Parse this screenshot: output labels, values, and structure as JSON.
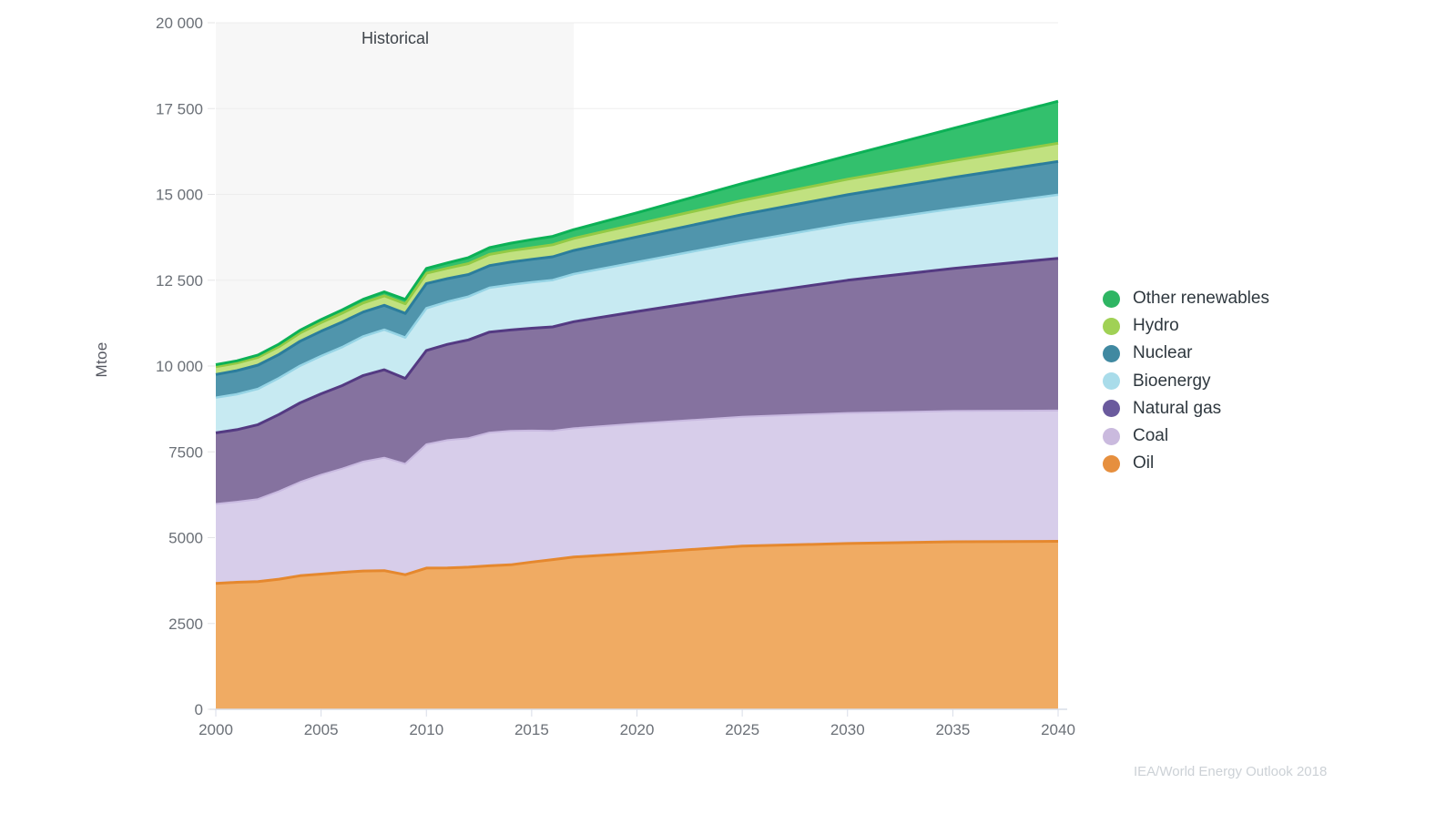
{
  "page": {
    "source_credit": "IEA/World Energy Outlook 2018"
  },
  "chart_data": {
    "type": "area",
    "stacked": true,
    "title": "",
    "ylabel": "Mtoe",
    "unit": "Mtoe",
    "ylim": [
      0,
      20000
    ],
    "ytick_step": 2500,
    "ytick_labels": [
      "0",
      "2500",
      "5000",
      "7500",
      "10 000",
      "12 500",
      "15 000",
      "17 500",
      "20 000"
    ],
    "xlim": [
      2000,
      2040
    ],
    "xtick_labels": [
      "2000",
      "2005",
      "2010",
      "2015",
      "2020",
      "2025",
      "2030",
      "2035",
      "2040"
    ],
    "grid": "horizontal-only",
    "legend_position": "right",
    "annotation": {
      "label": "Historical",
      "x_start": 2000,
      "x_end": 2017,
      "fill": "#f7f7f7"
    },
    "years": [
      2000,
      2001,
      2002,
      2003,
      2004,
      2005,
      2006,
      2007,
      2008,
      2009,
      2010,
      2011,
      2012,
      2013,
      2014,
      2015,
      2016,
      2017,
      2020,
      2025,
      2030,
      2035,
      2040
    ],
    "series": [
      {
        "name": "Oil",
        "fill": "#f0ab63",
        "stroke": "#e5882e",
        "stroke_width": 3,
        "values": [
          3665,
          3700,
          3720,
          3790,
          3890,
          3940,
          3990,
          4030,
          4040,
          3920,
          4113,
          4120,
          4140,
          4180,
          4210,
          4290,
          4360,
          4435,
          4550,
          4754,
          4830,
          4880,
          4894
        ]
      },
      {
        "name": "Coal",
        "fill": "#d7cdea",
        "stroke": "#c8b9e0",
        "stroke_width": 2,
        "values": [
          2317,
          2346,
          2402,
          2560,
          2727,
          2892,
          3020,
          3184,
          3290,
          3230,
          3606,
          3720,
          3760,
          3880,
          3900,
          3830,
          3750,
          3750,
          3770,
          3768,
          3800,
          3810,
          3809
        ]
      },
      {
        "name": "Natural gas",
        "fill": "#85729f",
        "stroke": "#543a82",
        "stroke_width": 3,
        "values": [
          2071,
          2100,
          2170,
          2240,
          2310,
          2360,
          2420,
          2510,
          2560,
          2490,
          2735,
          2790,
          2860,
          2930,
          2940,
          2980,
          3030,
          3107,
          3270,
          3540,
          3870,
          4150,
          4436
        ]
      },
      {
        "name": "Bioenergy",
        "fill": "#c7eaf2",
        "stroke": "#96d4e5",
        "stroke_width": 2.5,
        "values": [
          1026,
          1031,
          1043,
          1061,
          1080,
          1101,
          1122,
          1141,
          1168,
          1191,
          1230,
          1242,
          1265,
          1290,
          1315,
          1340,
          1363,
          1386,
          1440,
          1545,
          1640,
          1740,
          1850
        ]
      },
      {
        "name": "Nuclear",
        "fill": "#5095ac",
        "stroke": "#2b7d9c",
        "stroke_width": 3,
        "values": [
          675,
          687,
          692,
          687,
          714,
          721,
          728,
          709,
          712,
          703,
          719,
          674,
          642,
          646,
          662,
          670,
          680,
          688,
          730,
          803,
          850,
          910,
          971
        ]
      },
      {
        "name": "Hydro",
        "fill": "#c1e180",
        "stroke": "#93ca45",
        "stroke_width": 3,
        "values": [
          225,
          224,
          227,
          227,
          242,
          251,
          261,
          265,
          276,
          280,
          301,
          302,
          316,
          326,
          335,
          336,
          349,
          353,
          375,
          415,
          452,
          490,
          531
        ]
      },
      {
        "name": "Other renewables",
        "fill": "#33c06d",
        "stroke": "#0cb156",
        "stroke_width": 3,
        "values": [
          60,
          63,
          68,
          73,
          80,
          87,
          95,
          104,
          115,
          127,
          140,
          158,
          175,
          196,
          217,
          235,
          245,
          254,
          330,
          490,
          680,
          940,
          1223
        ]
      }
    ],
    "legend": [
      {
        "label": "Other renewables",
        "color": "#2eb563"
      },
      {
        "label": "Hydro",
        "color": "#a0d155"
      },
      {
        "label": "Nuclear",
        "color": "#4089a1"
      },
      {
        "label": "Bioenergy",
        "color": "#a9dcea"
      },
      {
        "label": "Natural gas",
        "color": "#6a5a9d"
      },
      {
        "label": "Coal",
        "color": "#cabade"
      },
      {
        "label": "Oil",
        "color": "#e68f3e"
      }
    ]
  }
}
